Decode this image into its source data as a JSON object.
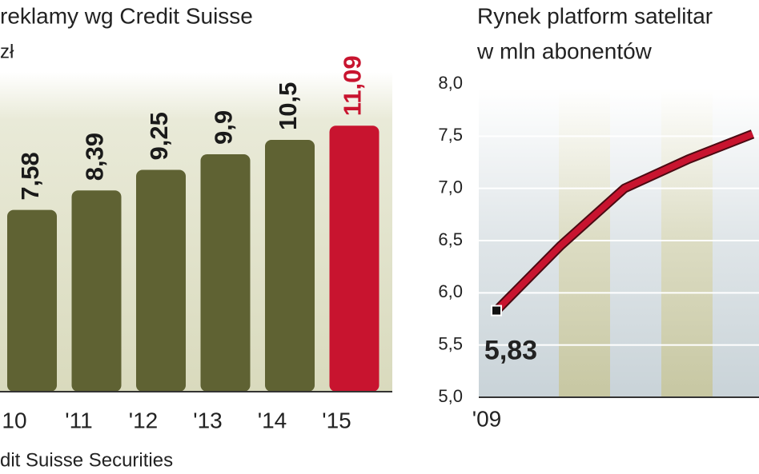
{
  "chart_data": [
    {
      "type": "bar",
      "title": "reklamy wg Credit Suisse",
      "subtitle": "zł",
      "source": "dit Suisse Securities",
      "categories": [
        "10",
        "'11",
        "'12",
        "'13",
        "'14",
        "'15"
      ],
      "values": [
        7.58,
        8.39,
        9.25,
        9.9,
        10.5,
        11.09
      ],
      "value_labels": [
        "7,58",
        "8,39",
        "9,25",
        "9,9",
        "10,5",
        "11,09"
      ],
      "colors": [
        "#5f6233",
        "#5f6233",
        "#5f6233",
        "#5f6233",
        "#5f6233",
        "#c8142f"
      ],
      "ylim": [
        0,
        13
      ]
    },
    {
      "type": "line",
      "title": "Rynek platform satelitar",
      "subtitle": "w mln abonentów",
      "x": [
        "'09",
        null,
        null,
        null,
        null
      ],
      "values": [
        5.83,
        6.45,
        7.0,
        7.28,
        7.52
      ],
      "value_labels": [
        "5,83",
        null,
        null,
        null,
        null
      ],
      "color": "#c8142f",
      "ylim": [
        5,
        8
      ],
      "yticks": [
        {
          "value": 5,
          "label": "5,0"
        },
        {
          "value": 5.5,
          "label": "5,5"
        },
        {
          "value": 6,
          "label": "6,0"
        },
        {
          "value": 6.5,
          "label": "6,5"
        },
        {
          "value": 7,
          "label": "7,0"
        },
        {
          "value": 7.5,
          "label": "7,5"
        },
        {
          "value": 8,
          "label": "8,0"
        }
      ],
      "grid": true
    }
  ]
}
